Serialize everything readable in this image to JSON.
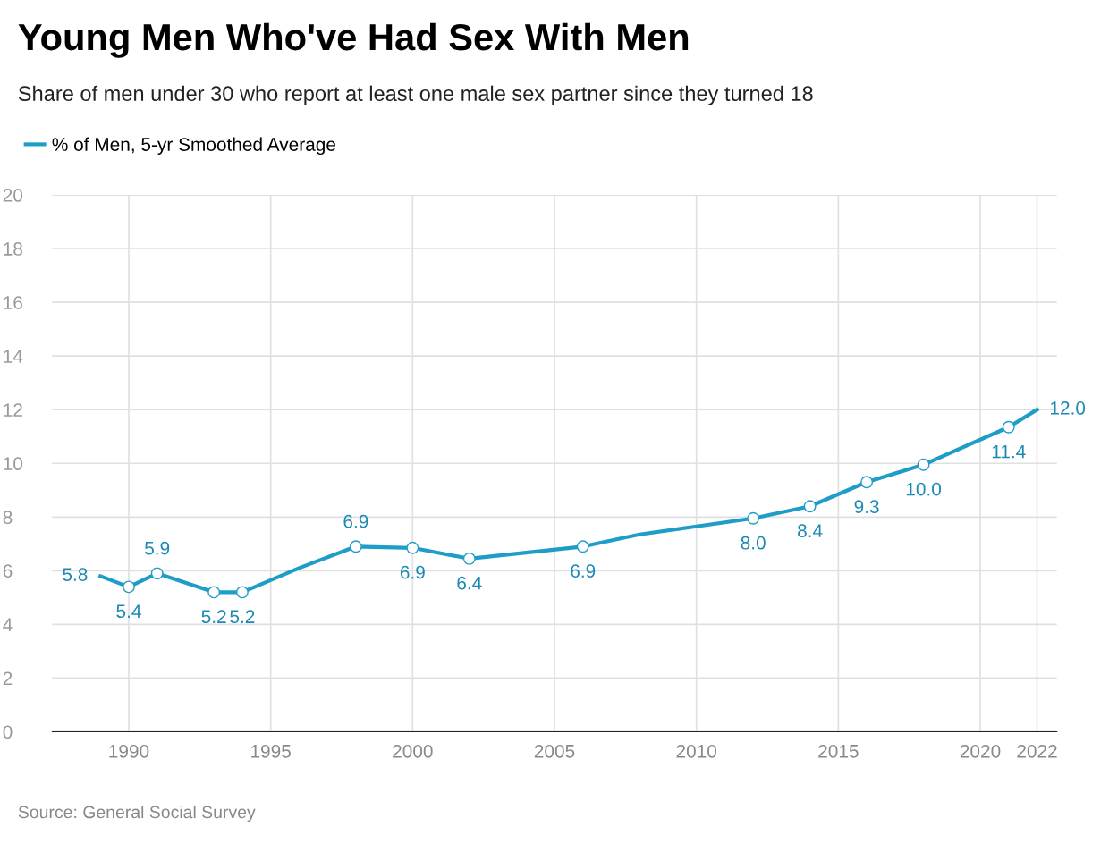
{
  "chart_data": {
    "type": "line",
    "title": "Young Men Who've Had Sex With Men",
    "subtitle": "Share of men under 30 who report at least one male sex partner since they turned 18",
    "x": [
      1989,
      1990,
      1991,
      1993,
      1994,
      1996,
      1998,
      2000,
      2002,
      2006,
      2008,
      2010,
      2012,
      2014,
      2016,
      2018,
      2021,
      2022
    ],
    "series": [
      {
        "name": "% of Men, 5-yr Smoothed Average",
        "color": "#1e9dc8",
        "values": [
          5.8,
          5.4,
          5.9,
          5.2,
          5.2,
          6.1,
          6.9,
          6.85,
          6.45,
          6.9,
          7.35,
          7.65,
          7.95,
          8.4,
          9.3,
          9.95,
          11.35,
          12.0
        ],
        "value_labels": [
          "5.8",
          "5.4",
          "5.9",
          "5.2",
          "5.2",
          null,
          "6.9",
          "6.9",
          "6.4",
          "6.9",
          null,
          null,
          "8.0",
          "8.4",
          "9.3",
          "10.0",
          "11.4",
          "12.0"
        ]
      }
    ],
    "xlim": [
      1987.3,
      2022.7
    ],
    "xticks": [
      1990,
      1995,
      2000,
      2005,
      2010,
      2015,
      2020,
      2022
    ],
    "ylim": [
      0,
      20
    ],
    "yticks": [
      0,
      2,
      4,
      6,
      8,
      10,
      12,
      14,
      16,
      18,
      20
    ],
    "grid": true,
    "legend": "top left",
    "marker": "circle",
    "line_style": "solid",
    "annotations": [
      "Source: General Social Survey"
    ]
  }
}
